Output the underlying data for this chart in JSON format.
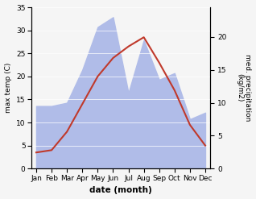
{
  "months": [
    "Jan",
    "Feb",
    "Mar",
    "Apr",
    "May",
    "Jun",
    "Jul",
    "Aug",
    "Sep",
    "Oct",
    "Nov",
    "Dec"
  ],
  "temperature": [
    3.5,
    4.0,
    8.0,
    14.0,
    20.0,
    24.0,
    26.5,
    28.5,
    23.0,
    17.0,
    9.5,
    5.0
  ],
  "precipitation": [
    9.5,
    9.5,
    10.0,
    15.0,
    21.5,
    23.0,
    11.5,
    19.5,
    13.5,
    14.5,
    7.5,
    8.5
  ],
  "temp_color": "#c0392b",
  "precip_fill_color": "#b0bce8",
  "temp_ylim": [
    0,
    35
  ],
  "precip_ylim": [
    0,
    24.5
  ],
  "temp_yticks": [
    0,
    5,
    10,
    15,
    20,
    25,
    30,
    35
  ],
  "precip_yticks": [
    0,
    5,
    10,
    15,
    20
  ],
  "xlabel": "date (month)",
  "ylabel_left": "max temp (C)",
  "ylabel_right": "med. precipitation\n(kg/m2)",
  "bg_color": "#f5f5f5"
}
